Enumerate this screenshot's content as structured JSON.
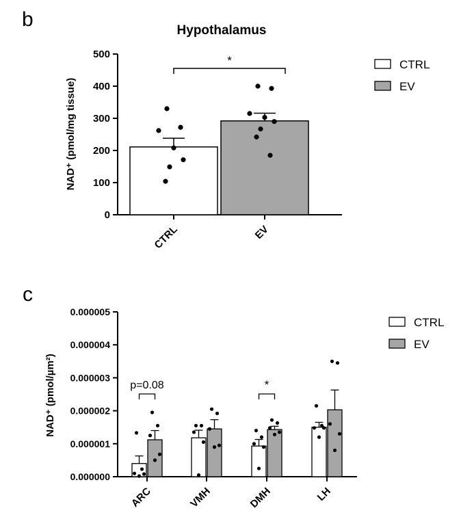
{
  "panels": {
    "b_label": "b",
    "c_label": "c"
  },
  "chart_data": [
    {
      "type": "bar",
      "title": "Hypothalamus",
      "xlabel": "",
      "ylabel": "NAD⁺ (pmol/mg tissue)",
      "ylim": [
        0,
        500
      ],
      "yticks": [
        "0",
        "100",
        "200",
        "300",
        "400",
        "500"
      ],
      "categories": [
        "CTRL",
        "EV"
      ],
      "values": [
        211,
        292
      ],
      "sem": [
        27,
        24
      ],
      "fill_colors": [
        "#ffffff",
        "#a6a6a6"
      ],
      "points": [
        [
          330,
          272,
          262,
          208,
          171,
          149,
          104
        ],
        [
          400,
          393,
          315,
          303,
          290,
          267,
          242,
          185
        ]
      ],
      "significance": [
        {
          "from": "CTRL",
          "to": "EV",
          "label": "*"
        }
      ],
      "legend": {
        "position": "top-right",
        "entries": [
          {
            "label": "CTRL",
            "color": "#ffffff"
          },
          {
            "label": "EV",
            "color": "#a6a6a6"
          }
        ]
      },
      "grid": false
    },
    {
      "type": "bar",
      "title": "",
      "xlabel": "",
      "ylabel": "NAD⁺ (pmol/µm²)",
      "ylim": [
        0,
        5e-06
      ],
      "yticks": [
        "0.000000",
        "0.000001",
        "0.000002",
        "0.000003",
        "0.000004",
        "0.000005"
      ],
      "categories": [
        "ARC",
        "VMH",
        "DMH",
        "LH"
      ],
      "series": [
        {
          "name": "CTRL",
          "color": "#ffffff",
          "values": [
            4e-07,
            1.18e-06,
            9.3e-07,
            1.5e-06
          ],
          "sem": [
            2.3e-07,
            2.3e-07,
            2e-07,
            1.5e-07
          ],
          "points": [
            [
              1.33e-06,
              2.3e-07,
              1e-07,
              8e-08,
              2e-08
            ],
            [
              1.55e-06,
              1.55e-06,
              1.35e-06,
              1.05e-06,
              5e-08
            ],
            [
              1.4e-06,
              1.2e-06,
              1e-06,
              9e-07,
              2.5e-07
            ],
            [
              2.15e-06,
              1.55e-06,
              1.48e-06,
              1.48e-06,
              1.2e-06
            ]
          ]
        },
        {
          "name": "EV",
          "color": "#a6a6a6",
          "values": [
            1.12e-06,
            1.45e-06,
            1.43e-06,
            2.03e-06
          ],
          "sem": [
            2.8e-07,
            2.8e-07,
            1e-07,
            6e-07
          ],
          "points": [
            [
              1.95e-06,
              1.55e-06,
              1.25e-06,
              6.8e-07,
              5e-07
            ],
            [
              2.05e-06,
              1.92e-06,
              1.45e-06,
              9.5e-07,
              9e-07
            ],
            [
              1.72e-06,
              1.63e-06,
              1.48e-06,
              1.35e-06,
              1.28e-06
            ],
            [
              3.5e-06,
              3.45e-06,
              1.6e-06,
              1.3e-06,
              8e-07
            ]
          ]
        }
      ],
      "annotations": [
        {
          "category": "ARC",
          "label": "p=0.08"
        },
        {
          "category": "DMH",
          "label": "*"
        }
      ],
      "legend": {
        "position": "top-right",
        "entries": [
          {
            "label": "CTRL",
            "color": "#ffffff"
          },
          {
            "label": "EV",
            "color": "#a6a6a6"
          }
        ]
      },
      "grid": false
    }
  ]
}
